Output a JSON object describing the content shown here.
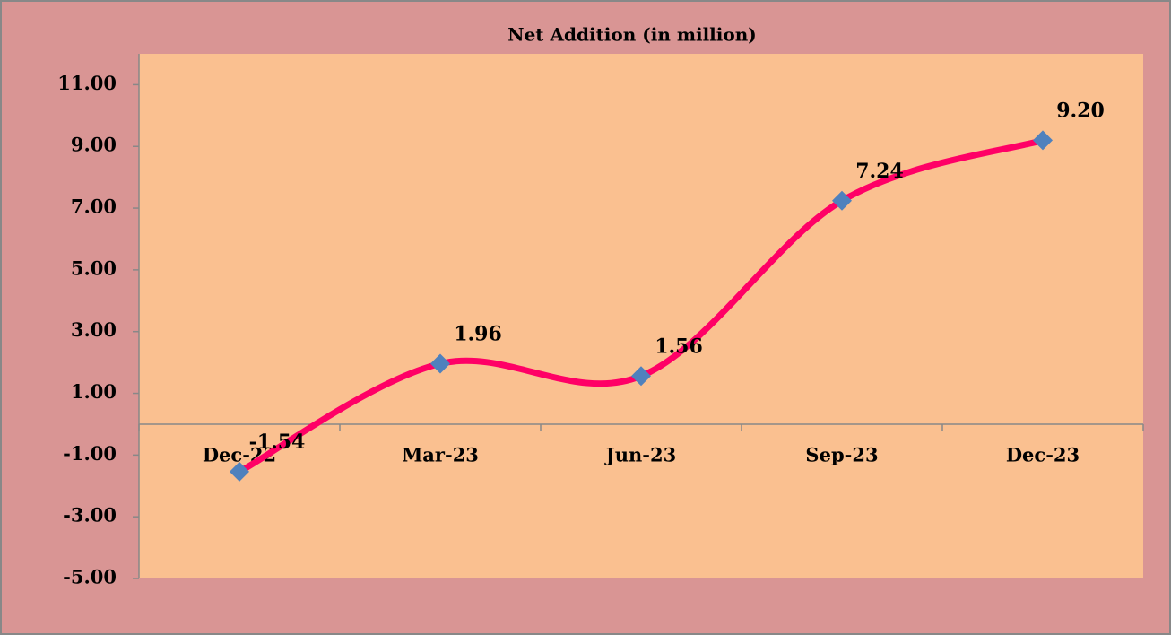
{
  "chart_data": {
    "type": "line",
    "title": "Net Addition (in million)",
    "categories": [
      "Dec-22",
      "Mar-23",
      "Jun-23",
      "Sep-23",
      "Dec-23"
    ],
    "series": [
      {
        "name": "Net Addition",
        "color": "#ff0066",
        "marker_color": "#4f81bd",
        "values": [
          -1.54,
          1.96,
          1.56,
          7.24,
          9.2
        ],
        "value_labels": [
          "-1.54",
          "1.96",
          "1.56",
          "7.24",
          "9.20"
        ]
      }
    ],
    "ylim": [
      -5,
      12
    ],
    "yticks": [
      {
        "value": -5,
        "label": "-5.00"
      },
      {
        "value": -3,
        "label": "-3.00"
      },
      {
        "value": -1,
        "label": "-1.00"
      },
      {
        "value": 1,
        "label": "1.00"
      },
      {
        "value": 3,
        "label": "3.00"
      },
      {
        "value": 5,
        "label": "5.00"
      },
      {
        "value": 7,
        "label": "7.00"
      },
      {
        "value": 9,
        "label": "9.00"
      },
      {
        "value": 11,
        "label": "11.00"
      }
    ],
    "grid": false
  }
}
